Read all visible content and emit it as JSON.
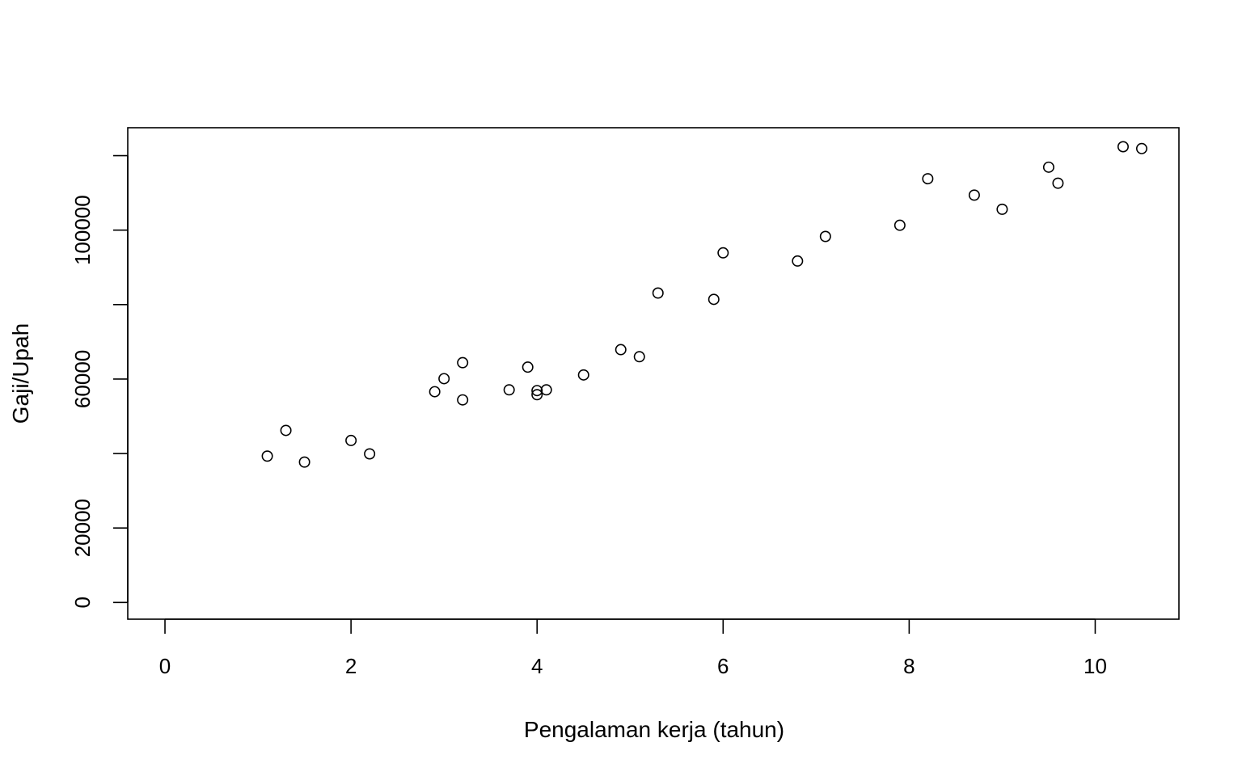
{
  "chart_data": {
    "type": "scatter",
    "title": "",
    "xlabel": "Pengalaman kerja (tahun)",
    "ylabel": "Gaji/Upah",
    "xlim": [
      -0.4,
      10.9
    ],
    "ylim": [
      -4500,
      127500
    ],
    "x_ticks": [
      0,
      2,
      4,
      6,
      8,
      10
    ],
    "y_ticks": [
      0,
      20000,
      40000,
      60000,
      80000,
      100000,
      120000
    ],
    "y_tick_labels": [
      "0",
      "20000",
      "",
      "60000",
      "",
      "100000",
      ""
    ],
    "grid": false,
    "series": [
      {
        "name": "data",
        "marker": "open-circle",
        "color": "#000000",
        "points": [
          [
            1.1,
            39300
          ],
          [
            1.3,
            46200
          ],
          [
            1.5,
            37700
          ],
          [
            2.0,
            43500
          ],
          [
            2.2,
            39900
          ],
          [
            2.9,
            56600
          ],
          [
            3.0,
            60100
          ],
          [
            3.2,
            54400
          ],
          [
            3.2,
            64400
          ],
          [
            3.7,
            57100
          ],
          [
            3.9,
            63200
          ],
          [
            4.0,
            55800
          ],
          [
            4.0,
            56900
          ],
          [
            4.1,
            57100
          ],
          [
            4.5,
            61100
          ],
          [
            4.9,
            67900
          ],
          [
            5.1,
            66000
          ],
          [
            5.3,
            83100
          ],
          [
            5.9,
            81400
          ],
          [
            6.0,
            93900
          ],
          [
            6.8,
            91700
          ],
          [
            7.1,
            98300
          ],
          [
            7.9,
            101300
          ],
          [
            8.2,
            113800
          ],
          [
            8.7,
            109400
          ],
          [
            9.0,
            105600
          ],
          [
            9.5,
            116900
          ],
          [
            9.6,
            112600
          ],
          [
            10.3,
            122400
          ],
          [
            10.5,
            121900
          ]
        ]
      }
    ]
  }
}
